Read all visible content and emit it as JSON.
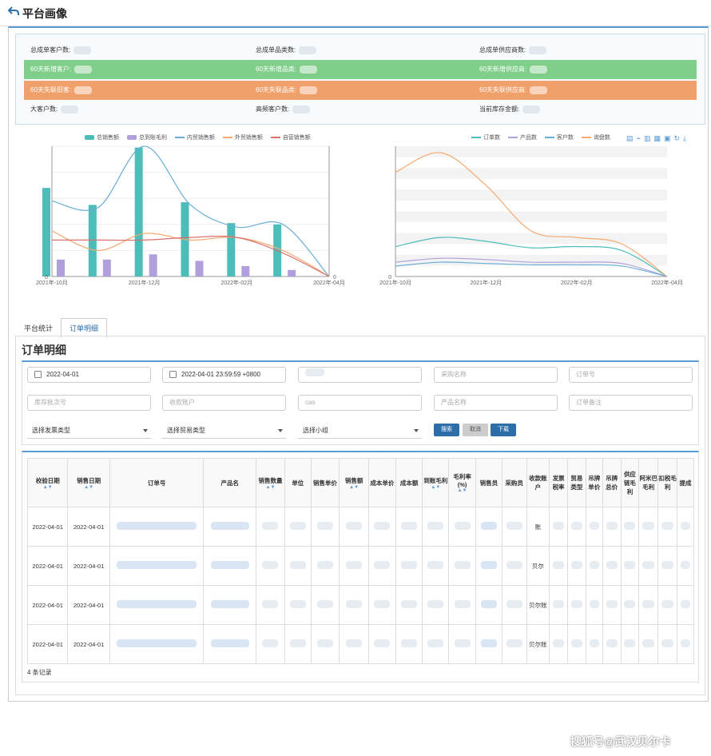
{
  "page": {
    "title": "平台画像"
  },
  "stats": {
    "row1": [
      "总成单客户数:",
      "总成单品类数:",
      "总成单供应商数:"
    ],
    "row2": [
      "60天新增客户:",
      "60天新增品类:",
      "60天新增供应商:"
    ],
    "row3": [
      "60天失联旧客:",
      "60天失联品类:",
      "60天失联供应商:"
    ],
    "row4": [
      "大客户数:",
      "高频客户数:",
      "当前库存金额:"
    ]
  },
  "colors": {
    "teal": "#4dbdb9",
    "purple": "#b19fdc",
    "blue_line": "#6aaed6",
    "orange_line": "#f4a972",
    "red_line": "#d9706b",
    "green_row": "#7fcf8b",
    "orange_row": "#f0a06a",
    "accent": "#2d6da8"
  },
  "chart_data": [
    {
      "type": "bar",
      "legend": [
        "总销售额",
        "总到账毛利",
        "内贸销售额",
        "外贸销售额",
        "自营销售额"
      ],
      "x_ticks": [
        "2021年-10月",
        "2021年-12月",
        "2022年-02月",
        "2022年-04月"
      ],
      "y_left_ticks": [
        "0"
      ],
      "y_right_ticks": [
        "0"
      ],
      "categories": [
        "2021-10",
        "2021-11",
        "2021-12",
        "2022-01",
        "2022-02",
        "2022-03",
        "2022-04"
      ],
      "series": [
        {
          "name": "总销售额",
          "type": "bar",
          "values": [
            68,
            55,
            99,
            57,
            41,
            40,
            0
          ]
        },
        {
          "name": "总到账毛利",
          "type": "bar",
          "values": [
            13,
            13,
            17,
            12,
            8,
            5,
            0
          ]
        },
        {
          "name": "内贸销售额",
          "type": "line",
          "values": [
            58,
            53,
            100,
            55,
            38,
            40,
            0
          ]
        },
        {
          "name": "外贸销售额",
          "type": "line",
          "values": [
            35,
            20,
            33,
            28,
            30,
            20,
            0
          ]
        },
        {
          "name": "自营销售额",
          "type": "line",
          "values": [
            28,
            28,
            28,
            30,
            30,
            18,
            0
          ]
        }
      ]
    },
    {
      "type": "line",
      "legend": [
        "订单数",
        "产品数",
        "客户数",
        "询盘数"
      ],
      "x_ticks": [
        "2021年-10月",
        "2021年-12月",
        "2022年-02月",
        "2022年-04月"
      ],
      "y_ticks": [
        "0"
      ],
      "categories": [
        "2021-10",
        "2021-11",
        "2021-12",
        "2022-01",
        "2022-02",
        "2022-03",
        "2022-04"
      ],
      "series": [
        {
          "name": "订单数",
          "values": [
            23,
            30,
            27,
            22,
            23,
            20,
            0
          ]
        },
        {
          "name": "产品数",
          "values": [
            11,
            14,
            13,
            11,
            11,
            10,
            0
          ]
        },
        {
          "name": "客户数",
          "values": [
            8,
            11,
            10,
            9,
            9,
            8,
            0
          ]
        },
        {
          "name": "询盘数",
          "values": [
            80,
            95,
            70,
            35,
            30,
            25,
            0
          ]
        }
      ]
    }
  ],
  "tabs": [
    "平台统计",
    "订单明细"
  ],
  "order": {
    "title": "订单明细",
    "start_date": "2022-04-01",
    "end_date": "2022-04-01 23:59:59 +0800",
    "placeholders": [
      "采购名称",
      "订单号",
      "库存批次号",
      "收款账户",
      "cas",
      "产品名称",
      "订单备注"
    ],
    "selects": [
      "选择发票类型",
      "选择贸易类型",
      "选择小组"
    ],
    "buttons": {
      "search": "搜索",
      "cancel": "取消",
      "download": "下载"
    },
    "columns": [
      "校验日期",
      "销售日期",
      "订单号",
      "产品名",
      "销售数量",
      "单位",
      "销售单价",
      "销售额",
      "成本单价",
      "成本额",
      "到账毛利",
      "毛利率(%)",
      "销售员",
      "采购员",
      "收款账户",
      "发票税率",
      "贸易类型",
      "吊牌单价",
      "吊牌总价",
      "供应链毛利",
      "阿米巴毛利",
      "扣税毛利",
      "提成"
    ],
    "rows": [
      {
        "check_date": "2022-04-01",
        "sale_date": "2022-04-01",
        "account": "账"
      },
      {
        "check_date": "2022-04-01",
        "sale_date": "2022-04-01",
        "account": "贝尔"
      },
      {
        "check_date": "2022-04-01",
        "sale_date": "2022-04-01",
        "account": "贝尔账"
      },
      {
        "check_date": "2022-04-01",
        "sale_date": "2022-04-01",
        "account": "贝尔账"
      }
    ],
    "record_count": "4 条记录"
  },
  "watermark": "搜狐号@武汉贝尔卡"
}
